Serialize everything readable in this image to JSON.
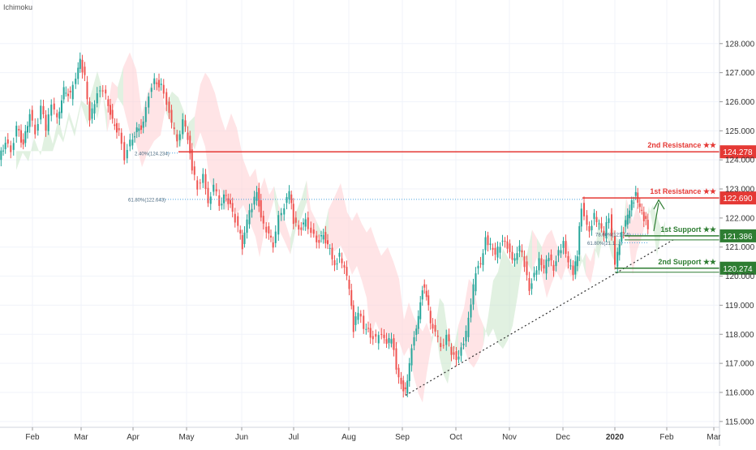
{
  "indicator_label": "Ichimoku",
  "colors": {
    "up": "#26a69a",
    "down": "#ef5350",
    "candle_up": "#26a69a",
    "candle_down": "#ef5350",
    "resistance": "#e53935",
    "support": "#2e7d32",
    "cloud_bull": "#c8e6c9",
    "cloud_bear": "#ffcdd2",
    "fib_line": "#4aa3df",
    "trendline": "#333333",
    "axis_text": "#333333",
    "grid": "#f0f3fa"
  },
  "chart_data": {
    "type": "line",
    "title": "",
    "series": [
      {
        "values": [
          [
            0,
            124.0
          ],
          [
            8,
            124.6
          ],
          [
            15,
            124.3
          ],
          [
            22,
            125.1
          ],
          [
            30,
            124.5
          ],
          [
            38,
            125.6
          ],
          [
            45,
            124.9
          ],
          [
            52,
            125.8
          ],
          [
            58,
            125.1
          ],
          [
            65,
            126.0
          ],
          [
            72,
            125.4
          ],
          [
            80,
            126.4
          ],
          [
            88,
            126.2
          ],
          [
            95,
            126.9
          ],
          [
            100,
            127.4
          ],
          [
            106,
            126.8
          ],
          [
            112,
            125.3
          ],
          [
            118,
            126.0
          ],
          [
            125,
            126.5
          ],
          [
            132,
            126.2
          ],
          [
            140,
            125.3
          ],
          [
            148,
            124.9
          ],
          [
            155,
            124.1
          ],
          [
            162,
            124.6
          ],
          [
            170,
            125.0
          ],
          [
            178,
            125.2
          ],
          [
            185,
            126.3
          ],
          [
            192,
            126.7
          ],
          [
            200,
            126.5
          ],
          [
            207,
            126.0
          ],
          [
            213,
            125.2
          ],
          [
            220,
            124.7
          ],
          [
            227,
            125.3
          ],
          [
            233,
            124.8
          ],
          [
            238,
            123.7
          ],
          [
            245,
            123.1
          ],
          [
            252,
            123.4
          ],
          [
            258,
            122.6
          ],
          [
            265,
            123.1
          ],
          [
            272,
            122.5
          ],
          [
            280,
            122.8
          ],
          [
            288,
            122.2
          ],
          [
            295,
            121.7
          ],
          [
            300,
            121.0
          ],
          [
            306,
            121.9
          ],
          [
            312,
            122.4
          ],
          [
            318,
            123.0
          ],
          [
            323,
            122.0
          ],
          [
            330,
            121.6
          ],
          [
            338,
            121.1
          ],
          [
            345,
            122.0
          ],
          [
            352,
            122.4
          ],
          [
            358,
            122.9
          ],
          [
            363,
            121.9
          ],
          [
            370,
            121.6
          ],
          [
            378,
            121.9
          ],
          [
            385,
            121.5
          ],
          [
            392,
            121.2
          ],
          [
            400,
            121.4
          ],
          [
            408,
            120.9
          ],
          [
            414,
            120.4
          ],
          [
            420,
            120.7
          ],
          [
            426,
            120.2
          ],
          [
            432,
            119.6
          ],
          [
            437,
            118.2
          ],
          [
            443,
            118.8
          ],
          [
            450,
            118.3
          ],
          [
            458,
            118.0
          ],
          [
            465,
            117.8
          ],
          [
            472,
            118.1
          ],
          [
            478,
            117.6
          ],
          [
            484,
            117.9
          ],
          [
            490,
            116.9
          ],
          [
            496,
            116.3
          ],
          [
            501,
            116.0
          ],
          [
            506,
            117.0
          ],
          [
            512,
            118.0
          ],
          [
            517,
            118.6
          ],
          [
            522,
            119.6
          ],
          [
            527,
            119.4
          ],
          [
            532,
            118.4
          ],
          [
            538,
            118.0
          ],
          [
            545,
            117.6
          ],
          [
            552,
            117.9
          ],
          [
            558,
            117.4
          ],
          [
            564,
            117.2
          ],
          [
            570,
            117.5
          ],
          [
            576,
            118.0
          ],
          [
            582,
            119.0
          ],
          [
            588,
            120.2
          ],
          [
            594,
            120.5
          ],
          [
            600,
            121.3
          ],
          [
            606,
            121.0
          ],
          [
            612,
            120.7
          ],
          [
            618,
            121.1
          ],
          [
            624,
            121.3
          ],
          [
            630,
            120.8
          ],
          [
            636,
            120.5
          ],
          [
            642,
            121.0
          ],
          [
            648,
            120.4
          ],
          [
            654,
            119.6
          ],
          [
            660,
            120.1
          ],
          [
            666,
            120.5
          ],
          [
            672,
            120.2
          ],
          [
            678,
            120.7
          ],
          [
            684,
            120.3
          ],
          [
            690,
            120.9
          ],
          [
            696,
            121.1
          ],
          [
            702,
            120.4
          ],
          [
            708,
            120.1
          ],
          [
            713,
            120.8
          ],
          [
            718,
            122.4
          ],
          [
            722,
            122.0
          ],
          [
            728,
            121.6
          ],
          [
            734,
            122.1
          ],
          [
            740,
            121.7
          ],
          [
            746,
            121.4
          ],
          [
            752,
            122.1
          ],
          [
            756,
            121.4
          ],
          [
            760,
            120.4
          ],
          [
            765,
            121.2
          ],
          [
            770,
            121.6
          ],
          [
            775,
            122.1
          ],
          [
            780,
            122.5
          ],
          [
            785,
            122.8
          ],
          [
            790,
            122.4
          ],
          [
            795,
            122.0
          ],
          [
            800,
            121.7
          ]
        ]
      }
    ],
    "x_ticks": [
      {
        "label": "Feb",
        "px": 40
      },
      {
        "label": "Mar",
        "px": 100
      },
      {
        "label": "Apr",
        "px": 164
      },
      {
        "label": "May",
        "px": 230
      },
      {
        "label": "Jun",
        "px": 298
      },
      {
        "label": "Jul",
        "px": 362
      },
      {
        "label": "Aug",
        "px": 430
      },
      {
        "label": "Sep",
        "px": 496
      },
      {
        "label": "Oct",
        "px": 562
      },
      {
        "label": "Nov",
        "px": 628
      },
      {
        "label": "Dec",
        "px": 694
      },
      {
        "label": "2020",
        "px": 758,
        "bold": true
      },
      {
        "label": "Feb",
        "px": 822
      },
      {
        "label": "Mar",
        "px": 880
      }
    ],
    "y_ticks": [
      "128.000",
      "127.000",
      "126.000",
      "125.000",
      "124.000",
      "123.000",
      "122.000",
      "121.000",
      "120.000",
      "119.000",
      "118.000",
      "117.000",
      "116.000",
      "115.000"
    ],
    "y_tick_values": [
      128,
      127,
      126,
      125,
      124,
      123,
      122,
      121,
      120,
      119,
      118,
      117,
      116,
      115
    ],
    "ylim": [
      114.8,
      129.5
    ],
    "levels": [
      {
        "id": "res2",
        "label": "2nd Resistance ★★",
        "value": 124.278,
        "price_label": "124.278",
        "kind": "resistance",
        "x_start": 220
      },
      {
        "id": "res1",
        "label": "1st Resistance ★★",
        "value": 122.69,
        "price_label": "122.690",
        "kind": "resistance",
        "x_start": 718
      },
      {
        "id": "sup1",
        "label": "1st Support ★★",
        "value": 121.386,
        "price_label": "121.386",
        "kind": "support",
        "x_start": 770
      },
      {
        "id": "sup2",
        "label": "2nd Support ★★",
        "value": 120.274,
        "price_label": "120.274",
        "kind": "support",
        "x_start": 758
      }
    ],
    "fib_labels": [
      {
        "text": "61.80%(122.643)",
        "value": 122.643,
        "x": 158,
        "x_end": 718
      },
      {
        "text": "2.40%(124.234)",
        "value": 124.234,
        "x": 166,
        "x_end": 220
      },
      {
        "text": "78.60%(121.44)",
        "value": 121.44,
        "x": 734,
        "x_end": 800
      },
      {
        "text": "61.80%(21.1...)",
        "value": 121.15,
        "x": 724,
        "x_end": 800
      }
    ],
    "trendline": {
      "x1": 500,
      "y1": 115.9,
      "x2": 830,
      "y2": 121.25
    }
  }
}
